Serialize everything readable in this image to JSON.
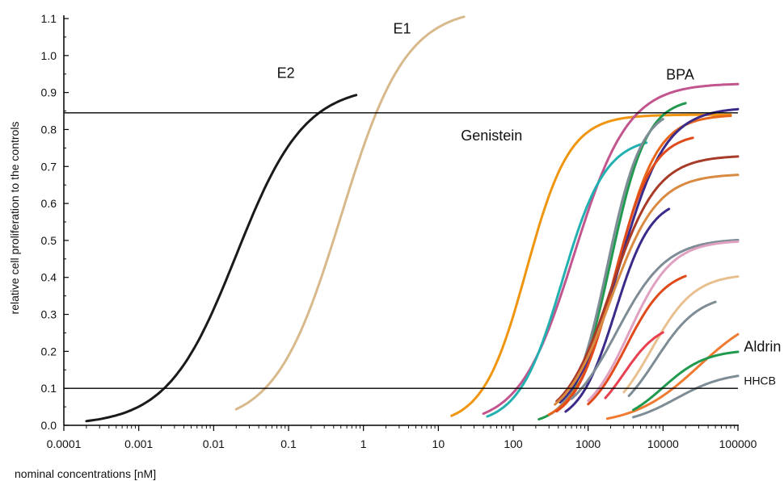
{
  "chart_data": {
    "type": "line",
    "title": "",
    "xlabel": "nominal concentrations [nM]",
    "ylabel": "relative cell proliferation to the controls",
    "x_scale": "log",
    "xlim": [
      0.0001,
      100000
    ],
    "ylim": [
      0.0,
      1.1
    ],
    "x_ticks": [
      0.0001,
      0.001,
      0.01,
      0.1,
      1,
      10,
      100,
      1000,
      10000,
      100000
    ],
    "x_tick_labels": [
      "0.0001",
      "0.001",
      "0.01",
      "0.1",
      "1",
      "10",
      "100",
      "1000",
      "10000",
      "100000"
    ],
    "y_ticks": [
      0.0,
      0.1,
      0.2,
      0.3,
      0.4,
      0.5,
      0.6,
      0.7,
      0.8,
      0.9,
      1.0,
      1.1
    ],
    "y_tick_labels": [
      "0.0",
      "0.1",
      "0.2",
      "0.3",
      "0.4",
      "0.5",
      "0.6",
      "0.7",
      "0.8",
      "0.9",
      "1.0",
      "1.1"
    ],
    "reference_lines": [
      0.1,
      0.845
    ],
    "grid": false,
    "legend": "none",
    "series": [
      {
        "name": "E2",
        "color": "#1a1a1a",
        "x_min": 0.0002,
        "x_max": 0.8,
        "ec50": 0.02,
        "hill": 0.95,
        "top": 0.92
      },
      {
        "name": "E1",
        "color": "#d8b98c",
        "x_min": 0.02,
        "x_max": 22,
        "ec50": 0.5,
        "hill": 1.0,
        "top": 1.13
      },
      {
        "name": "Genistein",
        "color": "#f0950f",
        "x_min": 15,
        "x_max": 80000,
        "ec50": 150,
        "hill": 1.5,
        "top": 0.84
      },
      {
        "name": "BPA",
        "color": "#c2558e",
        "x_min": 40,
        "x_max": 100000,
        "ec50": 650,
        "hill": 1.2,
        "top": 0.925
      },
      {
        "color": "#23b0b0",
        "x_min": 45,
        "x_max": 6000,
        "ec50": 450,
        "hill": 1.5,
        "top": 0.78
      },
      {
        "color": "#1f9a4e",
        "x_min": 220,
        "x_max": 20000,
        "ec50": 2000,
        "hill": 1.8,
        "top": 0.885
      },
      {
        "color": "#7e8c96",
        "x_min": 320,
        "x_max": 10000,
        "ec50": 1800,
        "hill": 1.9,
        "top": 0.86
      },
      {
        "color": "#e8661a",
        "x_min": 300,
        "x_max": 80000,
        "ec50": 2400,
        "hill": 1.6,
        "top": 0.84
      },
      {
        "color": "#3b2a8a",
        "x_min": 420,
        "x_max": 100000,
        "ec50": 2600,
        "hill": 1.4,
        "top": 0.86
      },
      {
        "color": "#e04a1a",
        "x_min": 380,
        "x_max": 25000,
        "ec50": 2200,
        "hill": 1.7,
        "top": 0.79
      },
      {
        "color": "#a83a28",
        "x_min": 380,
        "x_max": 100000,
        "ec50": 2000,
        "hill": 1.4,
        "top": 0.73
      },
      {
        "color": "#d98a40",
        "x_min": 360,
        "x_max": 100000,
        "ec50": 2000,
        "hill": 1.4,
        "top": 0.68
      },
      {
        "color": "#3b2a8a",
        "x_min": 500,
        "x_max": 12000,
        "ec50": 2300,
        "hill": 1.8,
        "top": 0.615
      },
      {
        "color": "#7e8c96",
        "x_min": 600,
        "x_max": 100000,
        "ec50": 2400,
        "hill": 1.3,
        "top": 0.505
      },
      {
        "color": "#e0a0c0",
        "x_min": 1000,
        "x_max": 100000,
        "ec50": 3500,
        "hill": 1.5,
        "top": 0.5
      },
      {
        "color": "#e04a1a",
        "x_min": 1000,
        "x_max": 20000,
        "ec50": 3200,
        "hill": 1.6,
        "top": 0.425
      },
      {
        "color": "#e8c090",
        "x_min": 3000,
        "x_max": 100000,
        "ec50": 7000,
        "hill": 1.5,
        "top": 0.41
      },
      {
        "color": "#7e8c96",
        "x_min": 3500,
        "x_max": 50000,
        "ec50": 8000,
        "hill": 1.5,
        "top": 0.355
      },
      {
        "color": "#e84050",
        "x_min": 1700,
        "x_max": 10000,
        "ec50": 3000,
        "hill": 1.8,
        "top": 0.28
      },
      {
        "name": "Aldrin",
        "color": "#f07a30",
        "x_min": 1800,
        "x_max": 100000,
        "ec50": 30000,
        "hill": 1.0,
        "top": 0.32
      },
      {
        "color": "#1f9a4e",
        "x_min": 4000,
        "x_max": 100000,
        "ec50": 10000,
        "hill": 1.5,
        "top": 0.205
      },
      {
        "name": "HHCB",
        "color": "#7e8c96",
        "x_min": 4000,
        "x_max": 100000,
        "ec50": 15000,
        "hill": 1.3,
        "top": 0.145
      }
    ],
    "annotations": [
      {
        "text": "E2",
        "x": 0.07,
        "y": 0.94,
        "size": 18
      },
      {
        "text": "E1",
        "x": 2.5,
        "y": 1.06,
        "size": 18
      },
      {
        "text": "BPA",
        "x": 11000,
        "y": 0.935,
        "size": 18
      },
      {
        "text": "Genistein",
        "x": 20,
        "y": 0.77,
        "size": 18
      },
      {
        "text": "Aldrin",
        "x": 120000,
        "y": 0.2,
        "size": 18
      },
      {
        "text": "HHCB",
        "x": 120000,
        "y": 0.11,
        "size": 14
      }
    ]
  }
}
